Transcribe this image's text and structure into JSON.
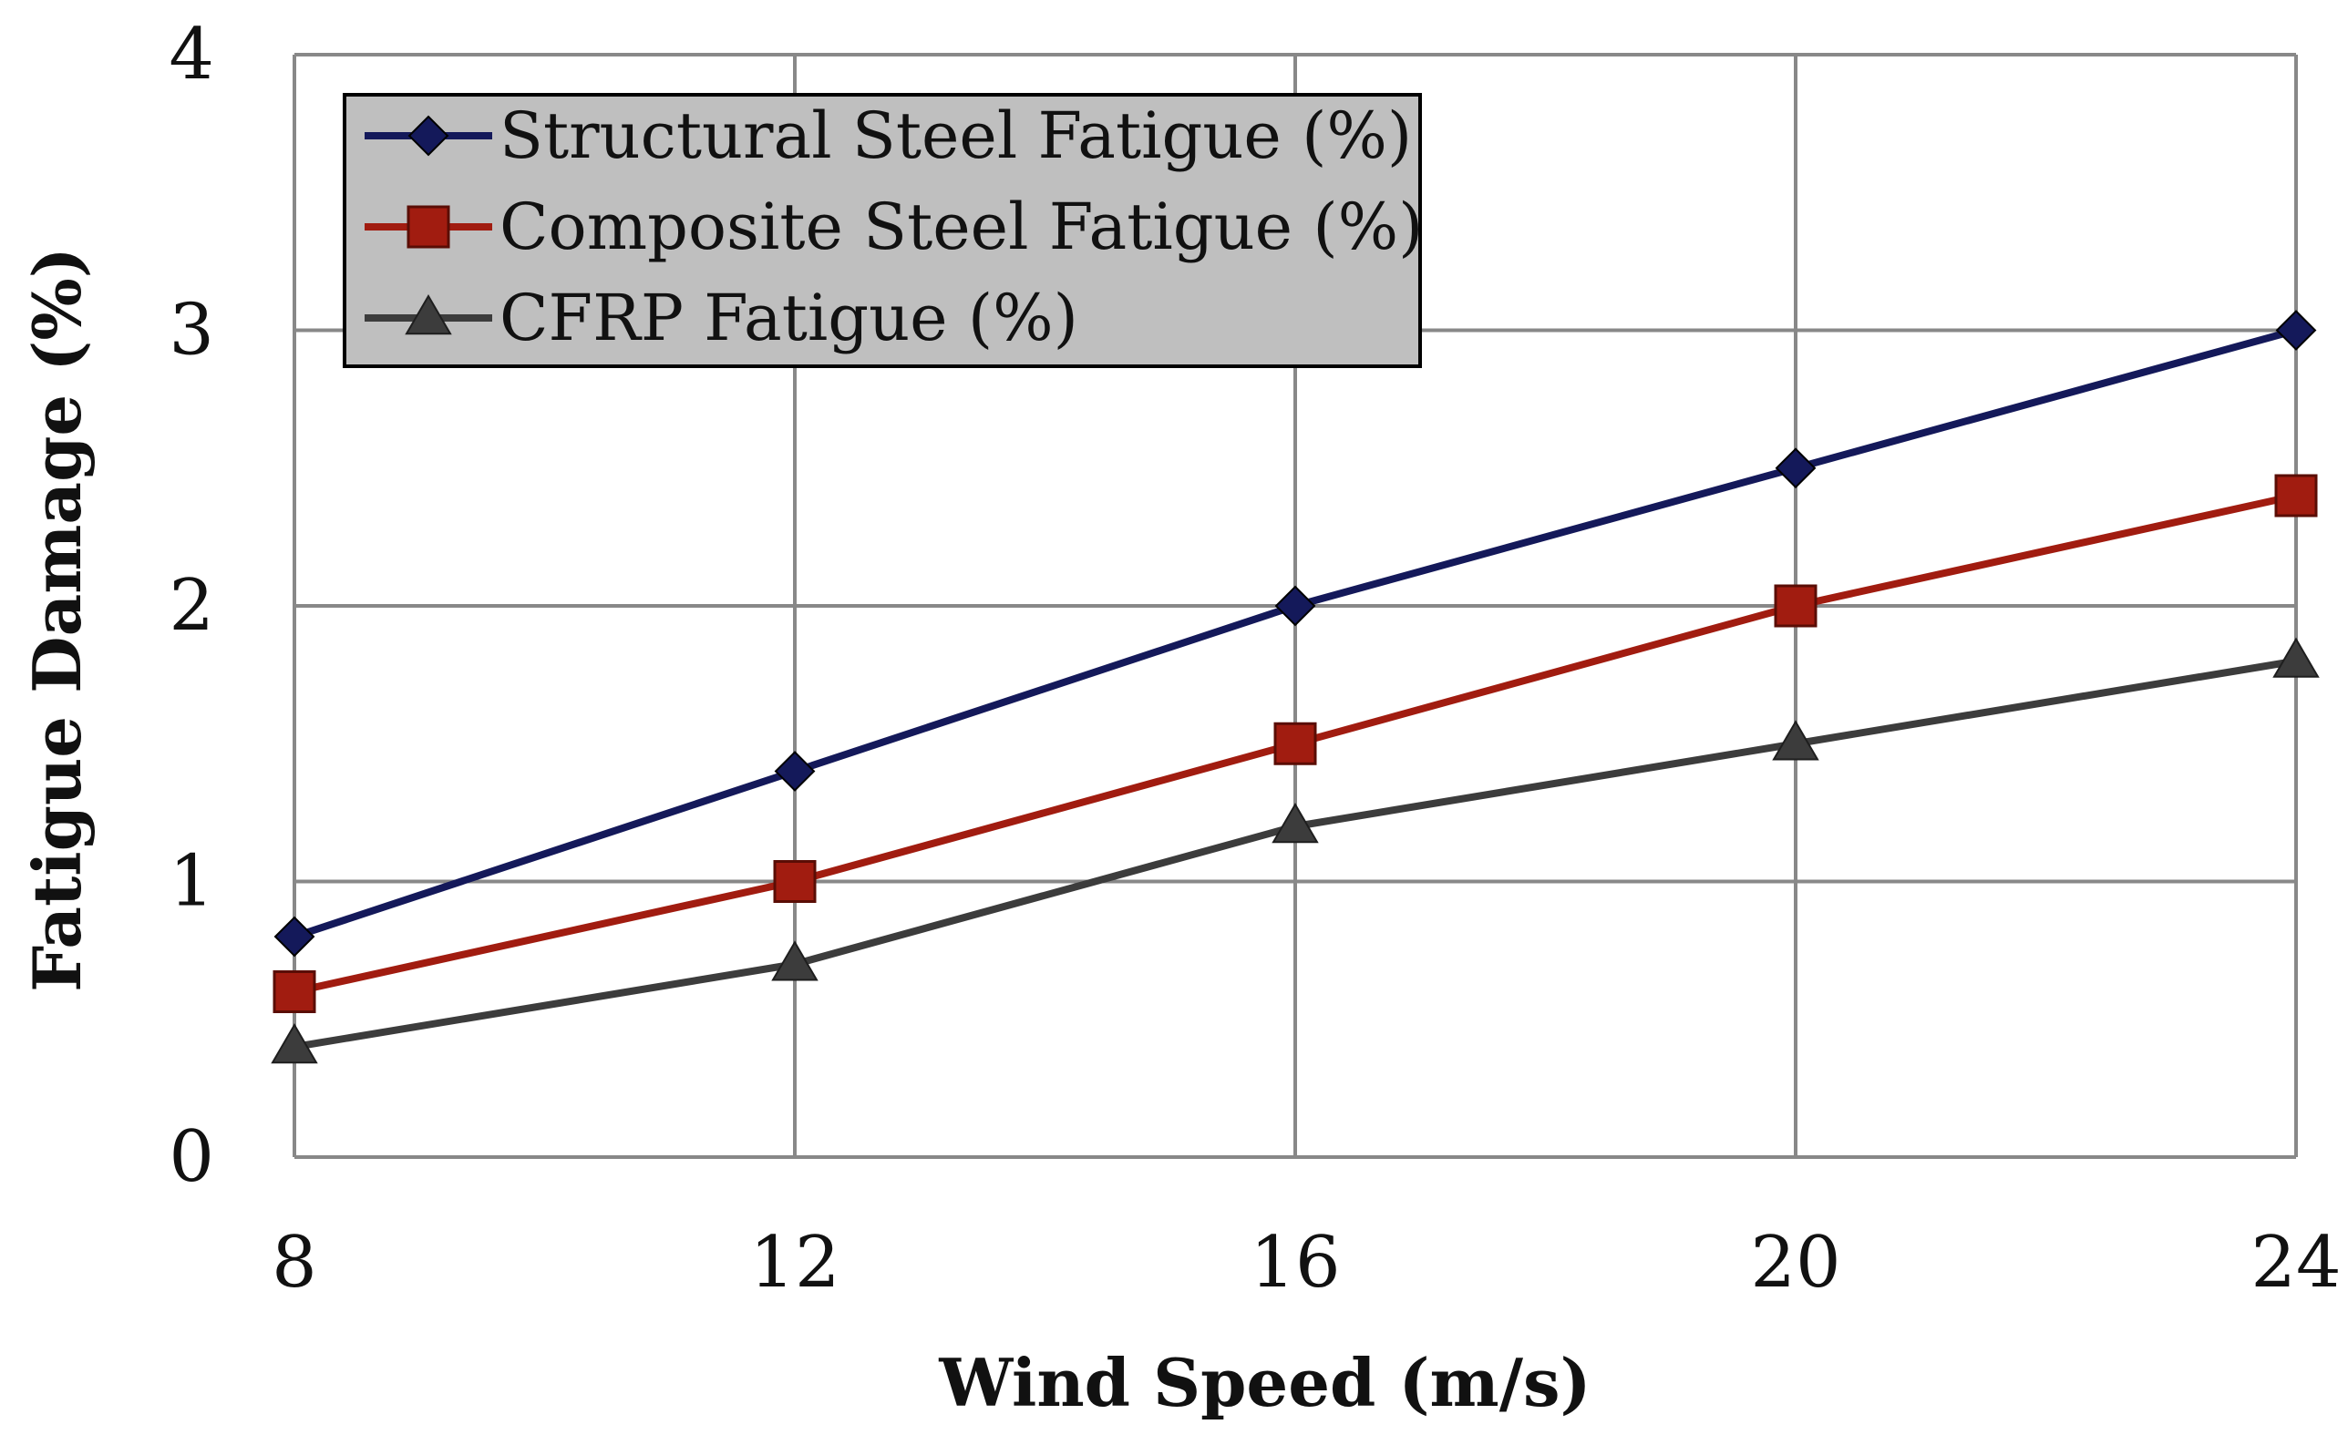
{
  "chart_data": {
    "type": "line",
    "title": "",
    "xlabel": "Wind Speed (m/s)",
    "ylabel": "Fatigue Damage (%)",
    "x": [
      8,
      12,
      16,
      20,
      24
    ],
    "x_tick_labels": [
      "8",
      "12",
      "16",
      "20",
      "24"
    ],
    "y_tick_labels": [
      "0",
      "1",
      "2",
      "3",
      "4"
    ],
    "xlim": [
      8,
      24
    ],
    "ylim": [
      0,
      4
    ],
    "grid": true,
    "legend_position": "top-left",
    "series": [
      {
        "name": "Structural Steel Fatigue (%)",
        "values": [
          0.8,
          1.4,
          2.0,
          2.5,
          3.0
        ],
        "color": "#14195a",
        "marker": "diamond"
      },
      {
        "name": "Composite Steel Fatigue (%)",
        "values": [
          0.6,
          1.0,
          1.5,
          2.0,
          2.4
        ],
        "color": "#a11c10",
        "marker": "square"
      },
      {
        "name": "CFRP Fatigue (%)",
        "values": [
          0.4,
          0.7,
          1.2,
          1.5,
          1.8
        ],
        "color": "#3c3c3c",
        "marker": "triangle"
      }
    ],
    "colors": {
      "grid": "#888888",
      "legend_background": "#bfbfbf",
      "legend_border": "#000000"
    }
  }
}
